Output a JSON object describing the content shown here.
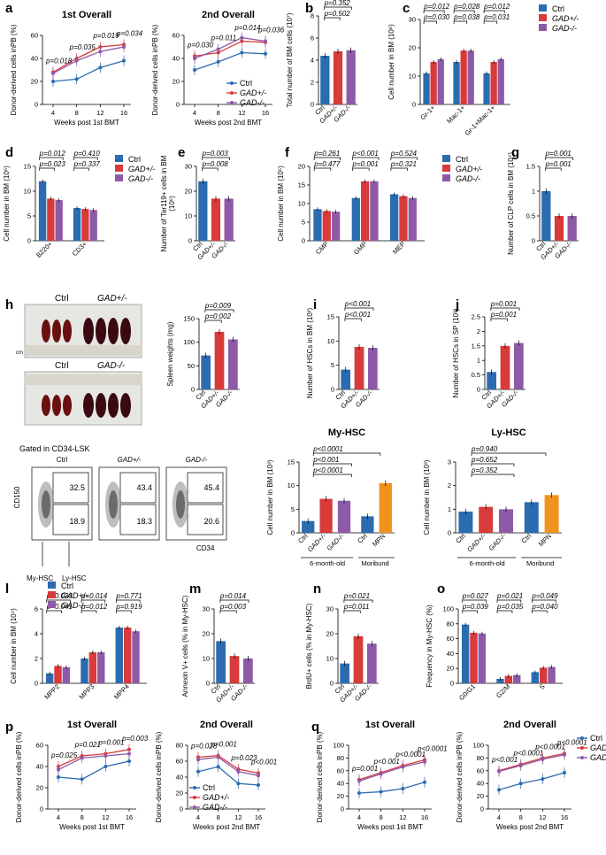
{
  "colors": {
    "ctrl": "#2b6cb0",
    "het": "#d93a3a",
    "ko": "#8e5aa8",
    "mpn": "#f0921e"
  },
  "series_names": [
    "Ctrl",
    "GAD+/-",
    "GAD-/-"
  ],
  "photo": {
    "het_label": "Ctrl",
    "het_label2": "GAD+/-",
    "ko_label": "Ctrl",
    "ko_label2": "GAD-/-",
    "ruler_label": "cm"
  },
  "flow": {
    "title": "Gated in CD34-LSK",
    "yaxis": "CD150",
    "xaxis": "CD34",
    "gate_top_label": "My-HSC",
    "gate_bottom_label": "Ly-HSC",
    "plots": [
      {
        "title": "Ctrl",
        "top": "32.5",
        "bottom": "18.9"
      },
      {
        "title": "GAD+/-",
        "top": "43.4",
        "bottom": "18.3"
      },
      {
        "title": "GAD-/-",
        "top": "45.4",
        "bottom": "20.6"
      }
    ]
  },
  "chart_data": [
    {
      "id": "a1",
      "panel_label": "a",
      "type": "line",
      "title": "1st Overall",
      "ylabel": "Donor-derived cells inPB (%)",
      "xlabel": "Weeks post 1st BMT",
      "x": [
        4,
        8,
        12,
        16
      ],
      "ylim": [
        0,
        60
      ],
      "yticks": [
        0,
        20,
        40,
        60
      ],
      "series": [
        {
          "name": "Ctrl",
          "values": [
            20,
            22,
            32,
            38
          ]
        },
        {
          "name": "GAD+/-",
          "values": [
            28,
            40,
            50,
            52
          ]
        },
        {
          "name": "GAD-/-",
          "values": [
            27,
            38,
            46,
            50
          ]
        }
      ],
      "annotations": [
        "p=0.018",
        "p=0.035",
        "p=0.019",
        "p=0.034"
      ]
    },
    {
      "id": "a2",
      "type": "line",
      "title": "2nd Overall",
      "ylabel": "Donor-derived cells inPB (%)",
      "xlabel": "Weeks post 2nd BMT",
      "x": [
        4,
        8,
        12,
        16
      ],
      "ylim": [
        0,
        60
      ],
      "yticks": [
        0,
        20,
        40,
        60
      ],
      "series": [
        {
          "name": "Ctrl",
          "values": [
            30,
            37,
            45,
            44
          ]
        },
        {
          "name": "GAD+/-",
          "values": [
            42,
            45,
            55,
            54
          ]
        },
        {
          "name": "GAD-/-",
          "values": [
            40,
            48,
            58,
            55
          ]
        }
      ],
      "annotations": [
        "p=0.030",
        "p=0.011",
        "p=0.014",
        "p=0.036"
      ],
      "legend": [
        "Ctrl",
        "GAD+/-",
        "GAD-/-"
      ]
    },
    {
      "id": "b",
      "panel_label": "b",
      "type": "bar",
      "ylabel": "Total number of BM cells (10⁷)",
      "categories": [
        "Ctrl",
        "GAD+/-",
        "GAD-/-"
      ],
      "values": [
        4.4,
        4.8,
        4.9
      ],
      "ylim": [
        0,
        8
      ],
      "yticks": [
        0,
        2,
        4,
        6,
        8
      ],
      "annotations": [
        "p=0.352",
        "p=0.502"
      ]
    },
    {
      "id": "c",
      "panel_label": "c",
      "type": "bar",
      "ylabel": "Cell number in BM (10⁶)",
      "categories": [
        "Gr-1+",
        "Mac-1+",
        "Gr-1+Mac-1+"
      ],
      "ylim": [
        0,
        30
      ],
      "yticks": [
        0,
        10,
        20,
        30
      ],
      "series": [
        {
          "name": "Ctrl",
          "values": [
            11,
            15,
            11
          ]
        },
        {
          "name": "GAD+/-",
          "values": [
            15,
            19,
            15
          ]
        },
        {
          "name": "GAD-/-",
          "values": [
            16,
            19,
            16
          ]
        }
      ],
      "annotations": [
        "p=0.012",
        "p=0.030",
        "p=0.028",
        "p=0.038",
        "p=0.012",
        "p=0.031"
      ],
      "legend": [
        "Ctrl",
        "GAD+/-",
        "GAD-/-"
      ]
    },
    {
      "id": "d",
      "panel_label": "d",
      "type": "bar",
      "ylabel": "Cell number in BM (10⁶)",
      "categories": [
        "B220+",
        "CD3+"
      ],
      "ylim": [
        0,
        15
      ],
      "yticks": [
        0,
        5,
        10,
        15
      ],
      "series": [
        {
          "name": "Ctrl",
          "values": [
            12,
            6.6
          ]
        },
        {
          "name": "GAD+/-",
          "values": [
            8.5,
            6.4
          ]
        },
        {
          "name": "GAD-/-",
          "values": [
            8.2,
            6.2
          ]
        }
      ],
      "annotations": [
        "p=0.012",
        "p=0.023",
        "p=0.410",
        "p=0.337"
      ],
      "legend": [
        "Ctrl",
        "GAD+/-",
        "GAD-/-"
      ]
    },
    {
      "id": "e",
      "panel_label": "e",
      "type": "bar",
      "ylabel": "Number of Ter119+ cells in BM (10⁶)",
      "categories": [
        "Ctrl",
        "GAD+/-",
        "GAD-/-"
      ],
      "values": [
        24,
        17,
        17
      ],
      "ylim": [
        0,
        30
      ],
      "yticks": [
        0,
        10,
        20,
        30
      ],
      "annotations": [
        "p=0.003",
        "p=0.008"
      ]
    },
    {
      "id": "f",
      "panel_label": "f",
      "type": "bar",
      "ylabel": "Cell number in BM (10⁵)",
      "categories": [
        "CMP",
        "GMP",
        "MEP"
      ],
      "ylim": [
        0,
        20
      ],
      "yticks": [
        0,
        5,
        10,
        15,
        20
      ],
      "series": [
        {
          "name": "Ctrl",
          "values": [
            8.5,
            11.5,
            12.5
          ]
        },
        {
          "name": "GAD+/-",
          "values": [
            8,
            16,
            12
          ]
        },
        {
          "name": "GAD-/-",
          "values": [
            7.8,
            16,
            11.5
          ]
        }
      ],
      "annotations": [
        "p=0.261",
        "p=0.477",
        "p<0.001",
        "p=0.001",
        "p=0.524",
        "p=0.321"
      ],
      "legend": [
        "Ctrl",
        "GAD+/-",
        "GAD-/-"
      ]
    },
    {
      "id": "g",
      "panel_label": "g",
      "type": "bar",
      "ylabel": "Number of CLP cells in BM (10⁴)",
      "categories": [
        "Ctrl",
        "GAD+/-",
        "GAD-/-"
      ],
      "values": [
        1.0,
        0.5,
        0.5
      ],
      "ylim": [
        0,
        1.5
      ],
      "yticks": [
        0,
        0.5,
        1.0,
        1.5
      ],
      "annotations": [
        "p=0.001",
        "p=0.001"
      ]
    },
    {
      "id": "h",
      "panel_label": "h",
      "type": "bar",
      "ylabel": "Spleen weights (mg)",
      "categories": [
        "Ctrl",
        "GAD+/-",
        "GAD-/-"
      ],
      "values": [
        72,
        122,
        106
      ],
      "ylim": [
        0,
        150
      ],
      "yticks": [
        0,
        50,
        100,
        150
      ],
      "annotations": [
        "p=0.009",
        "p=0.002"
      ]
    },
    {
      "id": "i",
      "panel_label": "i",
      "type": "bar",
      "ylabel": "Number of HSCs in BM (10³)",
      "categories": [
        "Ctrl",
        "GAD+/-",
        "GAD-/-"
      ],
      "values": [
        4.1,
        8.8,
        8.6
      ],
      "ylim": [
        0,
        15
      ],
      "yticks": [
        0,
        5,
        10,
        15
      ],
      "annotations": [
        "p<0.001",
        "p<0.001"
      ]
    },
    {
      "id": "j",
      "panel_label": "j",
      "type": "bar",
      "ylabel": "Number of HSCs in SP (10³)",
      "categories": [
        "Ctrl",
        "GAD+/-",
        "GAD-/-"
      ],
      "values": [
        0.6,
        1.5,
        1.6
      ],
      "ylim": [
        0,
        2.5
      ],
      "yticks": [
        0,
        0.5,
        1.0,
        1.5,
        2.0,
        2.5
      ],
      "annotations": [
        "p=0.001",
        "p=0.001"
      ]
    },
    {
      "id": "k1",
      "type": "bar",
      "title": "My-HSC",
      "ylabel": "Cell number in BM (10³)",
      "categories": [
        "Ctrl",
        "GAD+/-",
        "GAD-/-",
        "Ctrl",
        "MPN"
      ],
      "values": [
        2.5,
        7.2,
        6.8,
        3.5,
        10.5
      ],
      "ylim": [
        0,
        15
      ],
      "yticks": [
        0,
        5,
        10,
        15
      ],
      "groups": [
        "6-month-old",
        "Moribund"
      ],
      "annotations": [
        "p<0.0001",
        "p<0.001",
        "p<0.0001"
      ]
    },
    {
      "id": "k2",
      "type": "bar",
      "title": "Ly-HSC",
      "ylabel": "Cell number in BM (10³)",
      "categories": [
        "Ctrl",
        "GAD+/-",
        "GAD-/-",
        "Ctrl",
        "MPN"
      ],
      "values": [
        0.9,
        1.1,
        1.0,
        1.3,
        1.6
      ],
      "ylim": [
        0,
        3
      ],
      "yticks": [
        0,
        1,
        2,
        3
      ],
      "groups": [
        "6-month-old",
        "Moribund"
      ],
      "annotations": [
        "p=0.940",
        "p=0.652",
        "p=0.352"
      ]
    },
    {
      "id": "l",
      "panel_label": "l",
      "type": "bar",
      "ylabel": "Cell number in BM (10⁴)",
      "categories": [
        "MPP2",
        "MPP3",
        "MPP4"
      ],
      "ylim": [
        0,
        6
      ],
      "yticks": [
        0,
        2,
        4,
        6
      ],
      "series": [
        {
          "name": "Ctrl",
          "values": [
            0.8,
            2.0,
            4.5
          ]
        },
        {
          "name": "GAD+/-",
          "values": [
            1.4,
            2.5,
            4.5
          ]
        },
        {
          "name": "GAD-/-",
          "values": [
            1.3,
            2.5,
            4.2
          ]
        }
      ],
      "annotations": [
        "p=0.033",
        "p=0.041",
        "p=0.014",
        "p=0.012",
        "p=0.771",
        "p=0.919"
      ],
      "legend": [
        "Ctrl",
        "GAD+/-",
        "GAD-/-"
      ]
    },
    {
      "id": "m",
      "panel_label": "m",
      "type": "bar",
      "ylabel": "Annexin V+ cells (% in My-HSC)",
      "categories": [
        "Ctrl",
        "GAD+/-",
        "GAD-/-"
      ],
      "values": [
        17,
        11,
        10
      ],
      "ylim": [
        0,
        30
      ],
      "yticks": [
        0,
        10,
        20,
        30
      ],
      "annotations": [
        "p=0.014",
        "p=0.003"
      ]
    },
    {
      "id": "n",
      "panel_label": "n",
      "type": "bar",
      "ylabel": "BrdU+ cells (% in My-HSC)",
      "categories": [
        "Ctrl",
        "GAD+/-",
        "GAD-/-"
      ],
      "values": [
        8,
        19,
        16
      ],
      "ylim": [
        0,
        30
      ],
      "yticks": [
        0,
        10,
        20,
        30
      ],
      "annotations": [
        "p=0.021",
        "p=0.011"
      ]
    },
    {
      "id": "o",
      "panel_label": "o",
      "type": "bar",
      "ylabel": "Frequency in My-HSC (%)",
      "categories": [
        "G0/G1",
        "G2/M",
        "S"
      ],
      "ylim": [
        0,
        100
      ],
      "yticks": [
        0,
        20,
        40,
        60,
        80,
        100
      ],
      "series": [
        {
          "name": "Ctrl",
          "values": [
            79,
            6,
            15
          ]
        },
        {
          "name": "GAD+/-",
          "values": [
            68,
            10,
            21
          ]
        },
        {
          "name": "GAD-/-",
          "values": [
            67,
            11,
            22
          ]
        }
      ],
      "annotations": [
        "p=0.027",
        "p=0.039",
        "p=0.021",
        "p=0.035",
        "p=0.049",
        "p=0.040"
      ]
    },
    {
      "id": "p1",
      "panel_label": "p",
      "type": "line",
      "title": "1st Overall",
      "ylabel": "Donor-derived cells inPB (%)",
      "xlabel": "Weeks post 1st BMT",
      "x": [
        4,
        8,
        12,
        16
      ],
      "ylim": [
        0,
        60
      ],
      "yticks": [
        0,
        20,
        40,
        60
      ],
      "series": [
        {
          "name": "Ctrl",
          "values": [
            30,
            28,
            40,
            45
          ]
        },
        {
          "name": "GAD+/-",
          "values": [
            40,
            50,
            52,
            56
          ]
        },
        {
          "name": "GAD-/-",
          "values": [
            37,
            48,
            50,
            52
          ]
        }
      ],
      "annotations": [
        "p=0.025",
        "p=0.021",
        "p=0.001",
        "p=0.003"
      ]
    },
    {
      "id": "p2",
      "type": "line",
      "title": "2nd Overall",
      "ylabel": "Donor-derived cells inPB (%)",
      "xlabel": "Weeks post 2nd BMT",
      "x": [
        4,
        8,
        12,
        16
      ],
      "ylim": [
        0,
        80
      ],
      "yticks": [
        0,
        20,
        40,
        60,
        80
      ],
      "series": [
        {
          "name": "Ctrl",
          "values": [
            47,
            53,
            32,
            30
          ]
        },
        {
          "name": "GAD+/-",
          "values": [
            65,
            67,
            50,
            45
          ]
        },
        {
          "name": "GAD-/-",
          "values": [
            62,
            65,
            47,
            42
          ]
        }
      ],
      "annotations": [
        "p=0.028",
        "p=0.001",
        "p=0.023",
        "p<0.001"
      ],
      "legend": [
        "Ctrl",
        "GAD+/-",
        "GAD-/-"
      ]
    },
    {
      "id": "q1",
      "panel_label": "q",
      "type": "line",
      "title": "1st Overall",
      "ylabel": "Donor-derived cells inPB (%)",
      "xlabel": "Weeks post 1st BMT",
      "x": [
        4,
        8,
        12,
        16
      ],
      "ylim": [
        0,
        100
      ],
      "yticks": [
        0,
        20,
        40,
        60,
        80,
        100
      ],
      "series": [
        {
          "name": "Ctrl",
          "values": [
            25,
            27,
            32,
            42
          ]
        },
        {
          "name": "GAD+/-",
          "values": [
            46,
            57,
            68,
            77
          ]
        },
        {
          "name": "GAD-/-",
          "values": [
            44,
            55,
            66,
            74
          ]
        }
      ],
      "annotations": [
        "p=0.001",
        "p<0.001",
        "p<0.0001",
        "p<0.0001"
      ]
    },
    {
      "id": "q2",
      "type": "line",
      "title": "2nd Overall",
      "ylabel": "Donor-derived cells inPB (%)",
      "xlabel": "Weeks post 2nd BMT",
      "x": [
        4,
        8,
        12,
        16
      ],
      "ylim": [
        0,
        100
      ],
      "yticks": [
        0,
        20,
        40,
        60,
        80,
        100
      ],
      "series": [
        {
          "name": "Ctrl",
          "values": [
            30,
            40,
            47,
            57
          ]
        },
        {
          "name": "GAD+/-",
          "values": [
            60,
            70,
            80,
            87
          ]
        },
        {
          "name": "GAD-/-",
          "values": [
            59,
            68,
            78,
            85
          ]
        }
      ],
      "annotations": [
        "p<0.001",
        "p<0.0001",
        "p<0.0001",
        "p<0.0001"
      ],
      "legend": [
        "Ctrl",
        "GAD+/-",
        "GAD-/-"
      ]
    }
  ]
}
